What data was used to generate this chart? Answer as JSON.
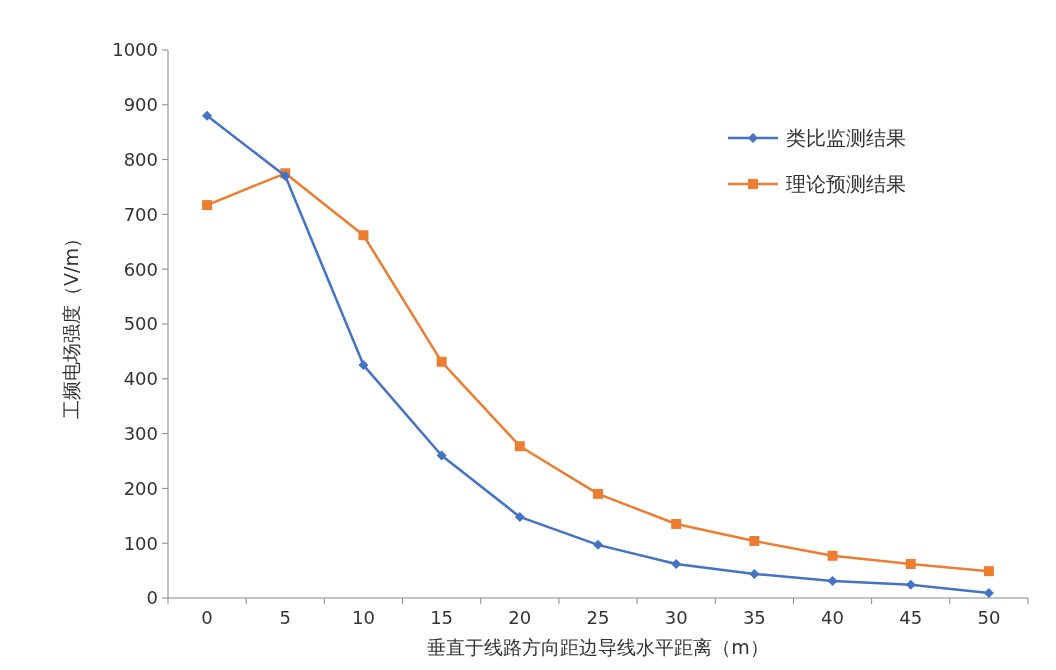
{
  "chart_data": {
    "type": "line",
    "xlabel": "垂直于线路方向距边导线水平距离（m）",
    "ylabel": "工频电场强度（V/m）",
    "categories": [
      "0",
      "5",
      "10",
      "15",
      "20",
      "25",
      "30",
      "35",
      "40",
      "45",
      "50"
    ],
    "series": [
      {
        "name": "类比监测结果",
        "color": "#4472c4",
        "marker": "diamond",
        "values": [
          880,
          770,
          425,
          260,
          148,
          97,
          62,
          44,
          31,
          24,
          9
        ]
      },
      {
        "name": "理论预测结果",
        "color": "#ed7d31",
        "marker": "square",
        "values": [
          717,
          775,
          662,
          431,
          277,
          190,
          135,
          104,
          77,
          62,
          49
        ]
      }
    ],
    "ylim": [
      0,
      1000
    ],
    "yticks": [
      0,
      100,
      200,
      300,
      400,
      500,
      600,
      700,
      800,
      900,
      1000
    ],
    "grid": false,
    "legend": "top right",
    "line_style": "solid"
  }
}
